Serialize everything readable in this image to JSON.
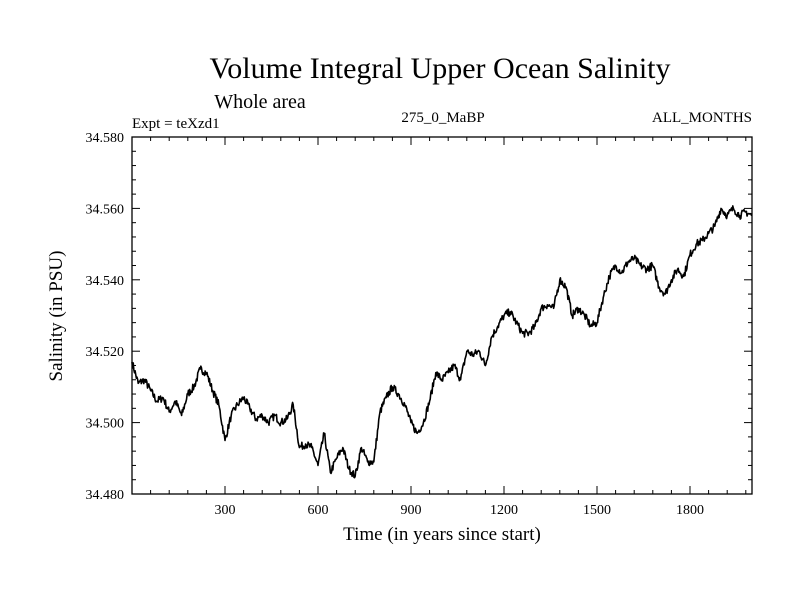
{
  "chart_data": {
    "type": "line",
    "title": "Volume Integral Upper Ocean Salinity",
    "subtitle": "Whole area",
    "expt_label": "Expt = teXzd1",
    "center_label": "275_0_MaBP",
    "right_label": "ALL_MONTHS",
    "xlabel": "Time (in years since start)",
    "ylabel": "Salinity (in PSU)",
    "xlim": [
      0,
      2000
    ],
    "ylim": [
      34.48,
      34.58
    ],
    "xticks": [
      300,
      600,
      900,
      1200,
      1500,
      1800
    ],
    "xtick_labels": [
      "300",
      "600",
      "900",
      "1200",
      "1500",
      "1800"
    ],
    "yticks": [
      34.48,
      34.5,
      34.52,
      34.54,
      34.56,
      34.58
    ],
    "ytick_labels": [
      "34.480",
      "34.500",
      "34.520",
      "34.540",
      "34.560",
      "34.580"
    ],
    "series": [
      {
        "name": "salinity",
        "x": [
          0,
          20,
          40,
          60,
          80,
          100,
          120,
          140,
          160,
          180,
          200,
          220,
          240,
          260,
          280,
          300,
          320,
          340,
          360,
          380,
          400,
          420,
          440,
          460,
          480,
          500,
          520,
          540,
          560,
          580,
          600,
          620,
          640,
          660,
          680,
          700,
          720,
          740,
          760,
          780,
          800,
          820,
          840,
          860,
          880,
          900,
          920,
          940,
          960,
          980,
          1000,
          1020,
          1040,
          1060,
          1080,
          1100,
          1120,
          1140,
          1160,
          1180,
          1200,
          1220,
          1240,
          1260,
          1280,
          1300,
          1320,
          1340,
          1360,
          1380,
          1400,
          1420,
          1440,
          1460,
          1480,
          1500,
          1520,
          1540,
          1560,
          1580,
          1600,
          1620,
          1640,
          1660,
          1680,
          1700,
          1720,
          1740,
          1760,
          1780,
          1800,
          1820,
          1840,
          1860,
          1880,
          1900,
          1920,
          1940,
          1960,
          1980,
          2000
        ],
        "values": [
          34.517,
          34.511,
          34.512,
          34.509,
          34.506,
          34.507,
          34.503,
          34.506,
          34.502,
          34.508,
          34.51,
          34.515,
          34.514,
          34.509,
          34.505,
          34.495,
          34.502,
          34.505,
          34.507,
          34.504,
          34.501,
          34.502,
          34.5,
          34.502,
          34.5,
          34.501,
          34.505,
          34.493,
          34.494,
          34.493,
          34.488,
          34.497,
          34.486,
          34.49,
          34.493,
          34.487,
          34.485,
          34.493,
          34.489,
          34.489,
          34.503,
          34.507,
          34.51,
          34.508,
          34.505,
          34.5,
          34.497,
          34.5,
          34.506,
          34.514,
          34.512,
          34.514,
          34.516,
          34.512,
          34.52,
          34.519,
          34.52,
          34.516,
          34.524,
          34.527,
          34.53,
          34.531,
          34.528,
          34.525,
          34.525,
          34.527,
          34.532,
          34.533,
          34.532,
          34.54,
          34.538,
          34.53,
          34.532,
          34.53,
          34.527,
          34.528,
          34.535,
          34.541,
          34.544,
          34.542,
          34.545,
          34.546,
          34.544,
          34.543,
          34.544,
          34.538,
          34.536,
          34.54,
          34.543,
          34.541,
          34.547,
          34.55,
          34.551,
          34.553,
          34.555,
          34.56,
          34.558,
          34.56,
          34.558,
          34.559,
          34.558
        ]
      }
    ]
  }
}
